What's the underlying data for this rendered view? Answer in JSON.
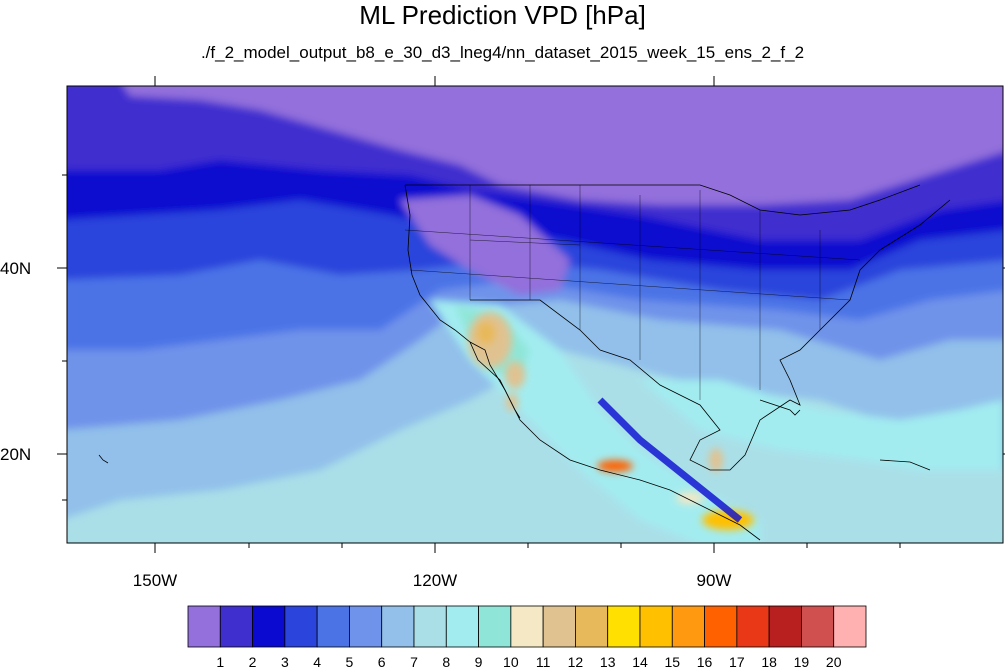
{
  "title": "ML Prediction VPD [hPa]",
  "subtitle": "./f_2_model_output_b8_e_30_d3_lneg4/nn_dataset_2015_week_15_ens_2_f_2",
  "axes": {
    "lat_labels": [
      "40N",
      "20N"
    ],
    "lon_labels": [
      "150W",
      "120W",
      "90W"
    ]
  },
  "colorbar": {
    "levels": [
      "1",
      "2",
      "3",
      "4",
      "5",
      "6",
      "7",
      "8",
      "9",
      "10",
      "11",
      "12",
      "13",
      "14",
      "15",
      "16",
      "17",
      "18",
      "19",
      "20"
    ],
    "colors": [
      "#9370db",
      "#3f2fcf",
      "#0a0ad0",
      "#2a44dc",
      "#4b73e6",
      "#6f93ea",
      "#92c0ea",
      "#aadfe8",
      "#a2ecf0",
      "#8fe6d8",
      "#f5e8c4",
      "#e0c291",
      "#e8b95a",
      "#ffe000",
      "#ffc000",
      "#ff9a10",
      "#ff6000",
      "#e83818",
      "#b82020",
      "#d05050",
      "#ffb0b0"
    ]
  },
  "chart_data": {
    "type": "heatmap",
    "title": "ML Prediction VPD [hPa]",
    "subtitle": "./f_2_model_output_b8_e_30_d3_lneg4/nn_dataset_2015_week_15_ens_2_f_2",
    "lon_range": [
      -159,
      -62
    ],
    "lat_range": [
      10,
      59
    ],
    "lon_ticks": [
      "150W",
      "120W",
      "90W"
    ],
    "lat_ticks": [
      "40N",
      "20N"
    ],
    "color_levels": [
      1,
      2,
      3,
      4,
      5,
      6,
      7,
      8,
      9,
      10,
      11,
      12,
      13,
      14,
      15,
      16,
      17,
      18,
      19,
      20
    ]
  }
}
